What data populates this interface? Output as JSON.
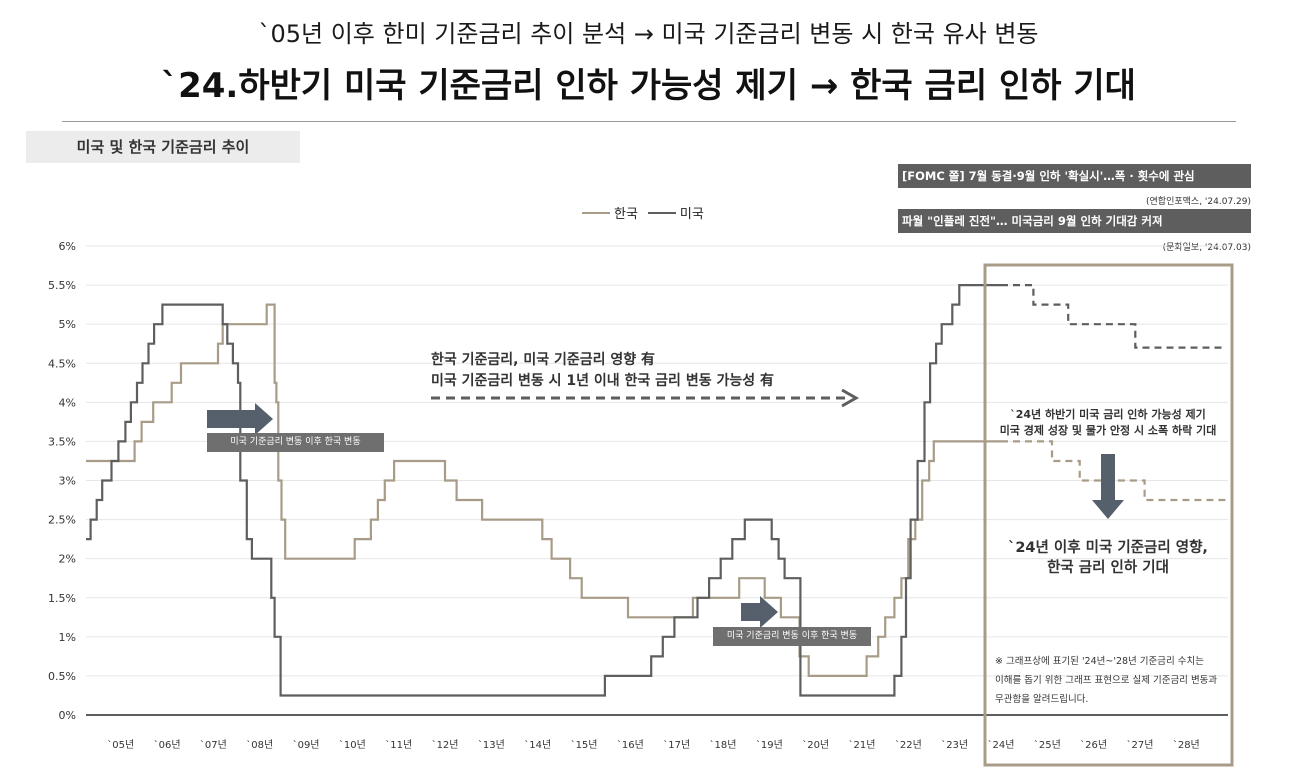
{
  "header": {
    "subtitle": "`05년 이후 한미 기준금리 추이 분석 → 미국 기준금리 변동 시 한국 유사 변동",
    "title": "`24.하반기 미국 기준금리 인하 가능성 제기 → 한국 금리 인하 기대"
  },
  "section_label": "미국 및 한국 기준금리 추이",
  "news": [
    {
      "headline": "[FOMC 쫄] 7월 동결·9월 인하 '확실시'…폭 · 횟수에 관심",
      "source": "(연합인포맥스, '24.07.29)"
    },
    {
      "headline": "파월 \"인플레 진전\"… 미국금리 9월 인하 기대감 커져",
      "source": "(문화일보, '24.07.03)"
    }
  ],
  "annotations": {
    "middle_line1": "한국 기준금리, 미국 기준금리 영향 有",
    "middle_line2": "미국 기준금리 변동 시 1년 이내 한국 금리 변동 가능성 有",
    "lag_tag_1": "미국 기준금리 변동 이후 한국 변동",
    "lag_tag_2": "미국 기준금리 변동 이후 한국 변동",
    "forecast_line1": "`24년 하반기 미국 금리 인하 가능성 제기",
    "forecast_line2": "미국 경제 성장 및 물가 안정 시 소폭 하락 기대",
    "expect_line1": "`24년 이후 미국 기준금리 영향,",
    "expect_line2": "한국 금리 인하 기대",
    "note_line1": "※ 그래프상에 표기된 '24년~'28년 기준금리 수치는",
    "note_line2": "이해를 돕기 위한 그래프 표현으로 실제 기준금리 변동과",
    "note_line3": "무관함을 알려드립니다."
  },
  "colors": {
    "korea": "#a89c88",
    "usa": "#5e5e5e",
    "arrow": "#56606c",
    "frame": "#a89c88"
  },
  "chart_data": {
    "type": "line",
    "xlabel": "",
    "ylabel": "",
    "ylim": [
      0,
      6
    ],
    "xlim": [
      2004.75,
      2029.4
    ],
    "yticks": [
      "0%",
      "0.5%",
      "1%",
      "1.5%",
      "2%",
      "2.5%",
      "3%",
      "3.5%",
      "4%",
      "4.5%",
      "5%",
      "5.5%",
      "6%"
    ],
    "xticks": [
      "`05년",
      "`06년",
      "`07년",
      "`08년",
      "`09년",
      "`10년",
      "`11년",
      "`12년",
      "`13년",
      "`14년",
      "`15년",
      "`16년",
      "`17년",
      "`18년",
      "`19년",
      "`20년",
      "`21년",
      "`22년",
      "`23년",
      "`24년",
      "`25년",
      "`26년",
      "`27년",
      "`28년"
    ],
    "series": [
      {
        "name": "한국",
        "steps": [
          [
            2004.75,
            3.25
          ],
          [
            2005.8,
            3.5
          ],
          [
            2005.95,
            3.75
          ],
          [
            2006.2,
            4.0
          ],
          [
            2006.6,
            4.25
          ],
          [
            2006.8,
            4.5
          ],
          [
            2007.6,
            4.75
          ],
          [
            2007.7,
            5.0
          ],
          [
            2008.65,
            5.25
          ],
          [
            2008.82,
            4.25
          ],
          [
            2008.86,
            4.0
          ],
          [
            2008.9,
            3.0
          ],
          [
            2008.97,
            2.5
          ],
          [
            2009.05,
            2.0
          ],
          [
            2010.55,
            2.25
          ],
          [
            2010.9,
            2.5
          ],
          [
            2011.05,
            2.75
          ],
          [
            2011.2,
            3.0
          ],
          [
            2011.4,
            3.25
          ],
          [
            2012.5,
            3.0
          ],
          [
            2012.75,
            2.75
          ],
          [
            2013.3,
            2.5
          ],
          [
            2014.6,
            2.25
          ],
          [
            2014.8,
            2.0
          ],
          [
            2015.2,
            1.75
          ],
          [
            2015.45,
            1.5
          ],
          [
            2016.45,
            1.25
          ],
          [
            2017.85,
            1.5
          ],
          [
            2018.85,
            1.75
          ],
          [
            2019.4,
            1.5
          ],
          [
            2019.75,
            1.25
          ],
          [
            2020.15,
            0.75
          ],
          [
            2020.35,
            0.5
          ],
          [
            2021.6,
            0.75
          ],
          [
            2021.85,
            1.0
          ],
          [
            2022.0,
            1.25
          ],
          [
            2022.2,
            1.5
          ],
          [
            2022.35,
            1.75
          ],
          [
            2022.5,
            2.25
          ],
          [
            2022.65,
            2.5
          ],
          [
            2022.8,
            3.0
          ],
          [
            2022.95,
            3.25
          ],
          [
            2023.05,
            3.5
          ],
          [
            2024.5,
            3.5
          ]
        ]
      },
      {
        "name": "미국",
        "steps": [
          [
            2004.75,
            2.25
          ],
          [
            2004.85,
            2.5
          ],
          [
            2004.98,
            2.75
          ],
          [
            2005.1,
            3.0
          ],
          [
            2005.3,
            3.25
          ],
          [
            2005.45,
            3.5
          ],
          [
            2005.6,
            3.75
          ],
          [
            2005.72,
            4.0
          ],
          [
            2005.85,
            4.25
          ],
          [
            2005.97,
            4.5
          ],
          [
            2006.1,
            4.75
          ],
          [
            2006.22,
            5.0
          ],
          [
            2006.4,
            5.25
          ],
          [
            2007.7,
            5.0
          ],
          [
            2007.8,
            4.75
          ],
          [
            2007.92,
            4.5
          ],
          [
            2008.03,
            4.25
          ],
          [
            2008.08,
            3.0
          ],
          [
            2008.22,
            2.25
          ],
          [
            2008.33,
            2.0
          ],
          [
            2008.75,
            1.5
          ],
          [
            2008.82,
            1.0
          ],
          [
            2008.95,
            0.25
          ],
          [
            2015.95,
            0.5
          ],
          [
            2016.95,
            0.75
          ],
          [
            2017.2,
            1.0
          ],
          [
            2017.45,
            1.25
          ],
          [
            2017.95,
            1.5
          ],
          [
            2018.2,
            1.75
          ],
          [
            2018.45,
            2.0
          ],
          [
            2018.7,
            2.25
          ],
          [
            2018.97,
            2.5
          ],
          [
            2019.55,
            2.25
          ],
          [
            2019.7,
            2.0
          ],
          [
            2019.83,
            1.75
          ],
          [
            2020.17,
            0.25
          ],
          [
            2022.2,
            0.5
          ],
          [
            2022.35,
            1.0
          ],
          [
            2022.45,
            1.75
          ],
          [
            2022.55,
            2.5
          ],
          [
            2022.7,
            3.25
          ],
          [
            2022.85,
            4.0
          ],
          [
            2022.97,
            4.5
          ],
          [
            2023.1,
            4.75
          ],
          [
            2023.22,
            5.0
          ],
          [
            2023.45,
            5.25
          ],
          [
            2023.6,
            5.5
          ],
          [
            2024.5,
            5.5
          ]
        ]
      },
      {
        "name": "한국",
        "projection": true,
        "steps": [
          [
            2024.5,
            3.5
          ],
          [
            2025.6,
            3.25
          ],
          [
            2026.2,
            3.0
          ],
          [
            2027.6,
            2.75
          ],
          [
            2029.35,
            2.75
          ]
        ]
      },
      {
        "name": "미국",
        "projection": true,
        "steps": [
          [
            2024.5,
            5.5
          ],
          [
            2025.2,
            5.25
          ],
          [
            2025.95,
            5.0
          ],
          [
            2027.4,
            4.7
          ],
          [
            2029.35,
            4.7
          ]
        ]
      }
    ]
  }
}
